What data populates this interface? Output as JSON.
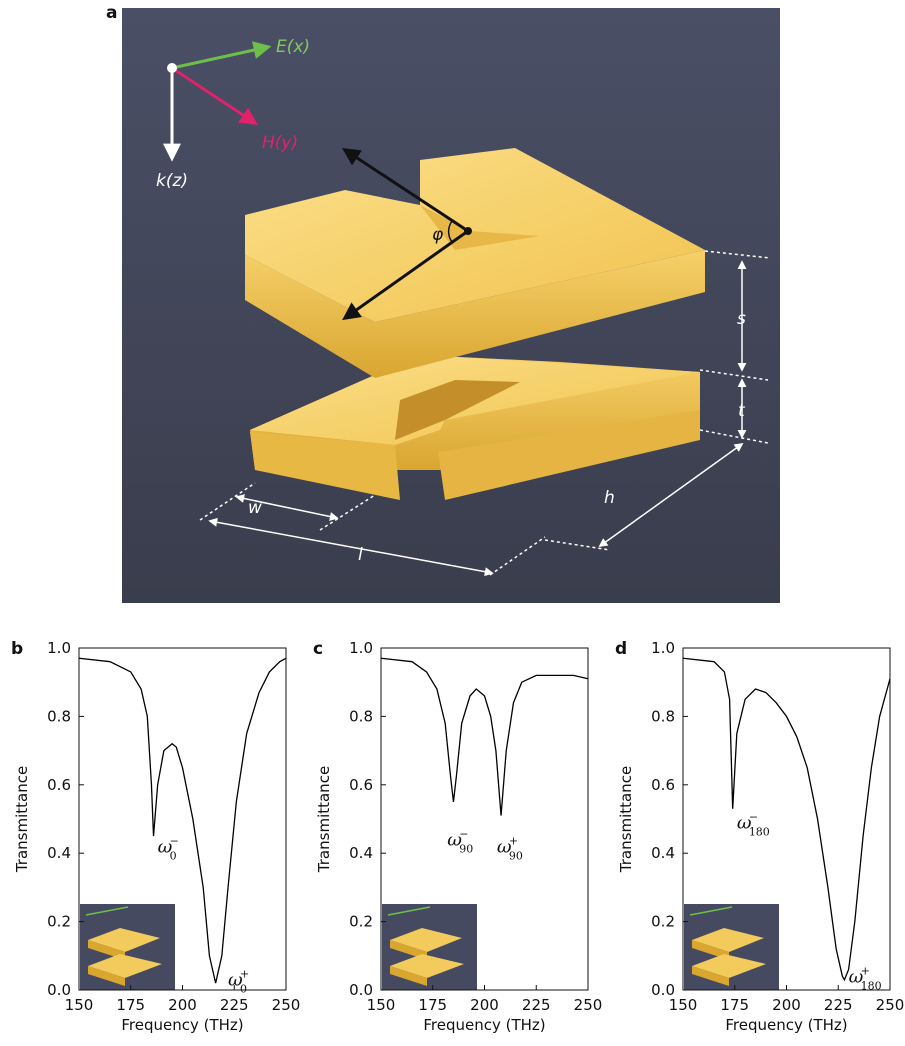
{
  "panel_a": {
    "label": "a",
    "e_label": "E(x)",
    "h_label": "H(y)",
    "k_label": "k(z)",
    "phi": "φ",
    "s": "s",
    "t": "t",
    "w": "w",
    "l": "l",
    "h": "h"
  },
  "chart_data": [
    {
      "type": "line",
      "panel_label": "b",
      "x_label": "Frequency (THz)",
      "y_label": "Transmittance",
      "color": "#000000",
      "x": [
        150,
        165,
        175,
        180,
        183,
        185,
        186,
        188,
        191,
        195,
        197,
        200,
        205,
        210,
        213,
        216,
        219,
        222,
        226,
        231,
        237,
        242,
        247,
        250
      ],
      "values": [
        0.97,
        0.96,
        0.93,
        0.88,
        0.8,
        0.6,
        0.45,
        0.6,
        0.7,
        0.72,
        0.71,
        0.65,
        0.5,
        0.3,
        0.1,
        0.02,
        0.1,
        0.3,
        0.55,
        0.75,
        0.87,
        0.93,
        0.96,
        0.97
      ],
      "xlim": [
        150,
        250
      ],
      "ylim": [
        0,
        1
      ],
      "xticks": [
        150,
        175,
        200,
        225,
        250
      ],
      "yticks": [
        {
          "value": 0,
          "label": "0.0"
        },
        0.2,
        0.4,
        0.6,
        0.8,
        {
          "value": 1,
          "label": "1.0"
        }
      ],
      "annotations": [
        {
          "text": "ω",
          "sub": "0",
          "sup": "−",
          "x": 188,
          "y": 0.42
        },
        {
          "text": "ω",
          "sub": "0",
          "sup": "+",
          "x": 222,
          "y": 0.03
        }
      ]
    },
    {
      "type": "line",
      "panel_label": "c",
      "x_label": "Frequency (THz)",
      "y_label": "Transmittance",
      "color": "#000000",
      "x": [
        150,
        165,
        172,
        177,
        181,
        183.5,
        185,
        186.5,
        189,
        193,
        196,
        200,
        203,
        205.5,
        208,
        210.5,
        214,
        218,
        225,
        235,
        243,
        250
      ],
      "values": [
        0.97,
        0.96,
        0.93,
        0.88,
        0.78,
        0.63,
        0.55,
        0.63,
        0.78,
        0.86,
        0.88,
        0.86,
        0.8,
        0.7,
        0.51,
        0.7,
        0.84,
        0.9,
        0.92,
        0.92,
        0.92,
        0.91
      ],
      "xlim": [
        150,
        250
      ],
      "ylim": [
        0,
        1
      ],
      "xticks": [
        150,
        175,
        200,
        225,
        250
      ],
      "yticks": [
        {
          "value": 0,
          "label": "0.0"
        },
        0.2,
        0.4,
        0.6,
        0.8,
        {
          "value": 1,
          "label": "1.0"
        }
      ],
      "annotations": [
        {
          "text": "ω",
          "sub": "90",
          "sup": "−",
          "x": 182,
          "y": 0.44
        },
        {
          "text": "ω",
          "sub": "90",
          "sup": "+",
          "x": 206,
          "y": 0.42
        }
      ]
    },
    {
      "type": "line",
      "panel_label": "d",
      "x_label": "Frequency (THz)",
      "y_label": "Transmittance",
      "color": "#000000",
      "x": [
        150,
        165,
        170,
        172.5,
        174,
        176,
        180,
        185,
        190,
        195,
        200,
        205,
        210,
        215,
        220,
        224,
        227,
        228,
        230,
        233,
        237,
        241,
        245,
        250
      ],
      "values": [
        0.97,
        0.96,
        0.93,
        0.85,
        0.53,
        0.75,
        0.85,
        0.88,
        0.87,
        0.84,
        0.8,
        0.74,
        0.65,
        0.5,
        0.3,
        0.12,
        0.04,
        0.03,
        0.06,
        0.2,
        0.45,
        0.65,
        0.8,
        0.91
      ],
      "xlim": [
        150,
        250
      ],
      "ylim": [
        0,
        1
      ],
      "xticks": [
        150,
        175,
        200,
        225,
        250
      ],
      "yticks": [
        {
          "value": 0,
          "label": "0.0"
        },
        0.2,
        0.4,
        0.6,
        0.8,
        {
          "value": 1,
          "label": "1.0"
        }
      ],
      "annotations": [
        {
          "text": "ω",
          "sub": "180",
          "sup": "−",
          "x": 176,
          "y": 0.49
        },
        {
          "text": "ω",
          "sub": "180",
          "sup": "+",
          "x": 230,
          "y": 0.04
        }
      ]
    }
  ]
}
